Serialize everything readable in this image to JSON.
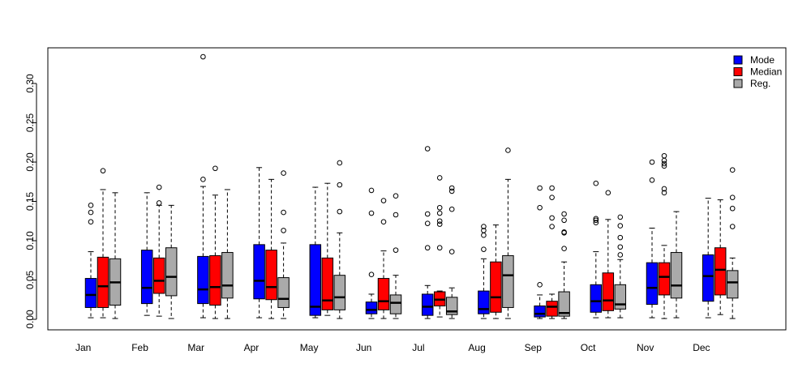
{
  "chart_data": {
    "type": "boxplot",
    "categories": [
      "Jan",
      "Feb",
      "Mar",
      "Apr",
      "May",
      "Jun",
      "Jul",
      "Aug",
      "Sep",
      "Oct",
      "Nov",
      "Dec"
    ],
    "ylim": [
      0,
      0.33
    ],
    "yticks": [
      0.0,
      0.05,
      0.1,
      0.15,
      0.2,
      0.25,
      0.3
    ],
    "ytick_labels": [
      "0.00",
      "0.05",
      "0.10",
      "0.15",
      "0.20",
      "0.25",
      "0.30"
    ],
    "grid": false,
    "legend_position": "top-right",
    "series": [
      {
        "name": "Mode",
        "color": "#0000ff",
        "boxes": [
          {
            "low": 0.002,
            "q1": 0.015,
            "median": 0.031,
            "q3": 0.052,
            "high": 0.086,
            "outliers": [
              0.124,
              0.136,
              0.145
            ]
          },
          {
            "low": 0.005,
            "q1": 0.02,
            "median": 0.04,
            "q3": 0.088,
            "high": 0.161,
            "outliers": []
          },
          {
            "low": 0.002,
            "q1": 0.02,
            "median": 0.038,
            "q3": 0.08,
            "high": 0.169,
            "outliers": [
              0.178,
              0.334
            ]
          },
          {
            "low": 0.002,
            "q1": 0.026,
            "median": 0.049,
            "q3": 0.095,
            "high": 0.193,
            "outliers": []
          },
          {
            "low": 0.002,
            "q1": 0.005,
            "median": 0.016,
            "q3": 0.095,
            "high": 0.168,
            "outliers": []
          },
          {
            "low": 0.001,
            "q1": 0.007,
            "median": 0.012,
            "q3": 0.022,
            "high": 0.032,
            "outliers": [
              0.057,
              0.135,
              0.164
            ]
          },
          {
            "low": 0.001,
            "q1": 0.005,
            "median": 0.016,
            "q3": 0.032,
            "high": 0.043,
            "outliers": [
              0.091,
              0.122,
              0.134,
              0.217
            ]
          },
          {
            "low": 0.001,
            "q1": 0.007,
            "median": 0.013,
            "q3": 0.036,
            "high": 0.077,
            "outliers": [
              0.089,
              0.107,
              0.113,
              0.118
            ]
          },
          {
            "low": 0.001,
            "q1": 0.003,
            "median": 0.007,
            "q3": 0.017,
            "high": 0.031,
            "outliers": [
              0.044,
              0.142,
              0.167
            ]
          },
          {
            "low": 0.002,
            "q1": 0.009,
            "median": 0.023,
            "q3": 0.044,
            "high": 0.086,
            "outliers": [
              0.123,
              0.126,
              0.128,
              0.173
            ]
          },
          {
            "low": 0.002,
            "q1": 0.019,
            "median": 0.04,
            "q3": 0.072,
            "high": 0.116,
            "outliers": [
              0.177,
              0.2
            ]
          },
          {
            "low": 0.002,
            "q1": 0.023,
            "median": 0.055,
            "q3": 0.082,
            "high": 0.154,
            "outliers": []
          }
        ]
      },
      {
        "name": "Median",
        "color": "#ff0000",
        "boxes": [
          {
            "low": 0.002,
            "q1": 0.015,
            "median": 0.042,
            "q3": 0.079,
            "high": 0.165,
            "outliers": [
              0.189
            ]
          },
          {
            "low": 0.004,
            "q1": 0.033,
            "median": 0.049,
            "q3": 0.078,
            "high": 0.145,
            "outliers": [
              0.148,
              0.168
            ]
          },
          {
            "low": 0.001,
            "q1": 0.018,
            "median": 0.041,
            "q3": 0.081,
            "high": 0.158,
            "outliers": [
              0.192
            ]
          },
          {
            "low": 0.001,
            "q1": 0.025,
            "median": 0.041,
            "q3": 0.088,
            "high": 0.178,
            "outliers": []
          },
          {
            "low": 0.005,
            "q1": 0.012,
            "median": 0.024,
            "q3": 0.078,
            "high": 0.173,
            "outliers": []
          },
          {
            "low": 0.001,
            "q1": 0.012,
            "median": 0.023,
            "q3": 0.052,
            "high": 0.087,
            "outliers": [
              0.124,
              0.151
            ]
          },
          {
            "low": 0.003,
            "q1": 0.017,
            "median": 0.025,
            "q3": 0.035,
            "high": 0.036,
            "outliers": [
              0.091,
              0.121,
              0.125,
              0.135,
              0.142,
              0.18
            ]
          },
          {
            "low": 0.001,
            "q1": 0.009,
            "median": 0.028,
            "q3": 0.073,
            "high": 0.12,
            "outliers": []
          },
          {
            "low": 0.001,
            "q1": 0.004,
            "median": 0.016,
            "q3": 0.023,
            "high": 0.032,
            "outliers": [
              0.118,
              0.129,
              0.155,
              0.167
            ]
          },
          {
            "low": 0.002,
            "q1": 0.011,
            "median": 0.024,
            "q3": 0.059,
            "high": 0.127,
            "outliers": [
              0.161
            ]
          },
          {
            "low": 0.001,
            "q1": 0.031,
            "median": 0.054,
            "q3": 0.072,
            "high": 0.094,
            "outliers": [
              0.161,
              0.166,
              0.195,
              0.198,
              0.202,
              0.208
            ]
          },
          {
            "low": 0.006,
            "q1": 0.031,
            "median": 0.063,
            "q3": 0.091,
            "high": 0.152,
            "outliers": []
          }
        ]
      },
      {
        "name": "Reg.",
        "color": "#aaaaaa",
        "boxes": [
          {
            "low": 0.001,
            "q1": 0.018,
            "median": 0.047,
            "q3": 0.077,
            "high": 0.161,
            "outliers": []
          },
          {
            "low": 0.001,
            "q1": 0.03,
            "median": 0.054,
            "q3": 0.091,
            "high": 0.145,
            "outliers": []
          },
          {
            "low": 0.001,
            "q1": 0.027,
            "median": 0.043,
            "q3": 0.085,
            "high": 0.165,
            "outliers": []
          },
          {
            "low": 0.001,
            "q1": 0.015,
            "median": 0.026,
            "q3": 0.053,
            "high": 0.097,
            "outliers": [
              0.113,
              0.136,
              0.186
            ]
          },
          {
            "low": 0.001,
            "q1": 0.012,
            "median": 0.028,
            "q3": 0.056,
            "high": 0.11,
            "outliers": [
              0.137,
              0.171,
              0.199
            ]
          },
          {
            "low": 0.001,
            "q1": 0.007,
            "median": 0.021,
            "q3": 0.031,
            "high": 0.056,
            "outliers": [
              0.088,
              0.133,
              0.157
            ]
          },
          {
            "low": 0.001,
            "q1": 0.006,
            "median": 0.01,
            "q3": 0.028,
            "high": 0.04,
            "outliers": [
              0.086,
              0.14,
              0.163,
              0.167
            ]
          },
          {
            "low": 0.001,
            "q1": 0.015,
            "median": 0.056,
            "q3": 0.081,
            "high": 0.178,
            "outliers": [
              0.215
            ]
          },
          {
            "low": 0.001,
            "q1": 0.004,
            "median": 0.008,
            "q3": 0.035,
            "high": 0.073,
            "outliers": [
              0.09,
              0.11,
              0.111,
              0.126,
              0.134
            ]
          },
          {
            "low": 0.002,
            "q1": 0.013,
            "median": 0.019,
            "q3": 0.044,
            "high": 0.076,
            "outliers": [
              0.082,
              0.092,
              0.104,
              0.119,
              0.13
            ]
          },
          {
            "low": 0.002,
            "q1": 0.027,
            "median": 0.043,
            "q3": 0.085,
            "high": 0.137,
            "outliers": []
          },
          {
            "low": 0.001,
            "q1": 0.027,
            "median": 0.047,
            "q3": 0.062,
            "high": 0.078,
            "outliers": [
              0.118,
              0.141,
              0.155,
              0.19
            ]
          }
        ]
      }
    ]
  }
}
